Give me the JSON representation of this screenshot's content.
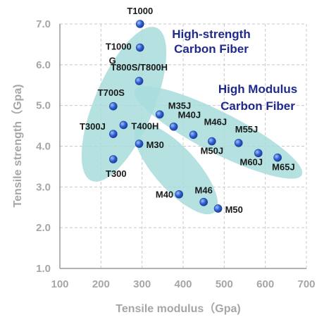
{
  "chart_data": {
    "type": "scatter",
    "title": "",
    "xlabel": "Tensile modulus（Gpa)",
    "ylabel": "Tensile strength（Gpa)",
    "xlim": [
      100,
      700
    ],
    "ylim": [
      1.0,
      7.0
    ],
    "x_ticks": [
      "100",
      "200",
      "300",
      "400",
      "500",
      "600",
      "700"
    ],
    "y_ticks": [
      "1.0",
      "2.0",
      "3.0",
      "4.0",
      "5.0",
      "6.0",
      "7.0"
    ],
    "grid": "dashed",
    "colors": {
      "axis_text": "#a6a6a6",
      "region_fill": "#a8dcdc",
      "point": "#2f5fd0",
      "label": "#1a1a1a",
      "annotation": "#1f2a8c",
      "grid": "#c8c8c8"
    },
    "annotations": [
      {
        "lines": [
          "High-strength",
          "Carbon Fiber"
        ],
        "group": "high-strength"
      },
      {
        "lines": [
          "High Modulus",
          "Carbon Fiber"
        ],
        "group": "high-modulus"
      }
    ],
    "points": [
      {
        "label": "T1000",
        "x": 295,
        "y": 7.0
      },
      {
        "label": "T1000G",
        "x": 295,
        "y": 6.42
      },
      {
        "label": "T800S/T800H",
        "x": 293,
        "y": 5.6
      },
      {
        "label": "T700S",
        "x": 230,
        "y": 4.98
      },
      {
        "label": "T400H",
        "x": 255,
        "y": 4.52
      },
      {
        "label": "T300J",
        "x": 230,
        "y": 4.3
      },
      {
        "label": "T300",
        "x": 230,
        "y": 3.68
      },
      {
        "label": "M30",
        "x": 293,
        "y": 4.06
      },
      {
        "label": "M35J",
        "x": 343,
        "y": 4.78
      },
      {
        "label": "M40J",
        "x": 377,
        "y": 4.48
      },
      {
        "label": "M46J",
        "x": 425,
        "y": 4.28
      },
      {
        "label": "M50J",
        "x": 470,
        "y": 4.12
      },
      {
        "label": "M55J",
        "x": 535,
        "y": 4.08
      },
      {
        "label": "M60J",
        "x": 583,
        "y": 3.83
      },
      {
        "label": "M65J",
        "x": 630,
        "y": 3.72
      },
      {
        "label": "M40",
        "x": 390,
        "y": 2.82
      },
      {
        "label": "M46",
        "x": 450,
        "y": 2.63
      },
      {
        "label": "M50",
        "x": 485,
        "y": 2.47
      }
    ]
  }
}
